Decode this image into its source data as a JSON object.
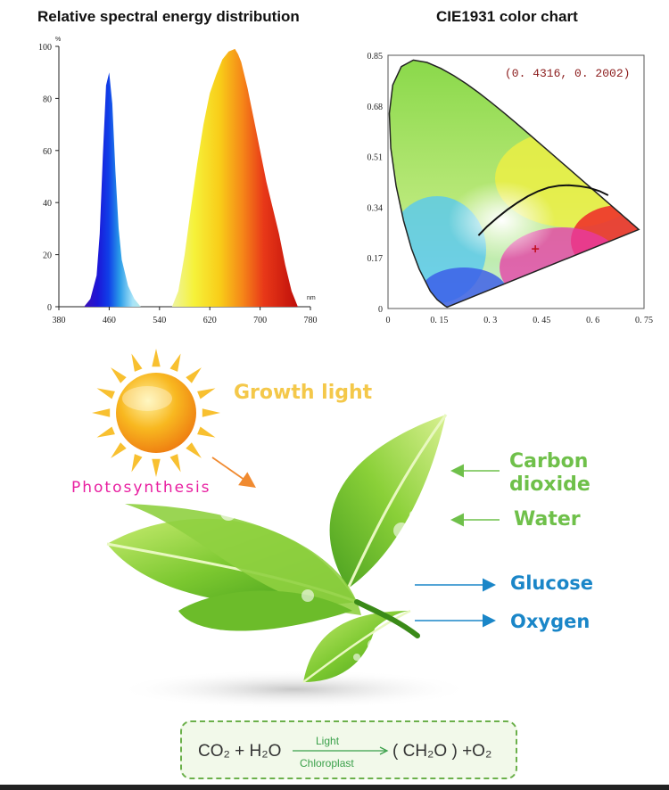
{
  "chart_data": [
    {
      "type": "area",
      "title": "Relative spectral energy distribution",
      "ylabel": "%",
      "xlabel": "nm",
      "xlim": [
        380,
        780
      ],
      "ylim": [
        0,
        100
      ],
      "xticks": [
        "380",
        "460",
        "540",
        "620",
        "700",
        "780"
      ],
      "yticks": [
        "0",
        "20",
        "40",
        "60",
        "80",
        "100"
      ],
      "x": [
        420,
        430,
        440,
        445,
        450,
        455,
        460,
        465,
        470,
        475,
        480,
        490,
        500,
        510,
        560,
        570,
        580,
        590,
        600,
        610,
        620,
        630,
        640,
        650,
        660,
        665,
        670,
        680,
        690,
        700,
        710,
        720,
        730,
        740,
        750,
        760
      ],
      "y": [
        0,
        3,
        12,
        28,
        58,
        85,
        90,
        78,
        52,
        30,
        18,
        8,
        3,
        0,
        0,
        6,
        20,
        38,
        55,
        70,
        82,
        89,
        95,
        98,
        99,
        97,
        94,
        84,
        72,
        60,
        48,
        38,
        28,
        16,
        6,
        0
      ],
      "grid": false,
      "legend": "none"
    },
    {
      "type": "scatter",
      "title": "CIE1931 color chart",
      "xlim": [
        0,
        0.75
      ],
      "ylim": [
        0,
        0.85
      ],
      "xticks": [
        "0",
        "0. 15",
        "0. 3",
        "0. 45",
        "0. 6",
        "0. 75"
      ],
      "yticks": [
        "0",
        "0.17",
        "0.34",
        "0.51",
        "0.68",
        "0.85"
      ],
      "annotation": "(0. 4316,  0. 2002)",
      "point": {
        "x": 0.4316,
        "y": 0.2002
      },
      "planckian_locus": {
        "x": [
          0.265,
          0.29,
          0.32,
          0.35,
          0.38,
          0.41,
          0.44,
          0.47,
          0.5,
          0.53,
          0.56,
          0.59,
          0.62,
          0.645
        ],
        "y": [
          0.245,
          0.275,
          0.305,
          0.332,
          0.356,
          0.377,
          0.394,
          0.406,
          0.412,
          0.414,
          0.411,
          0.405,
          0.394,
          0.38
        ]
      },
      "grid": false
    }
  ],
  "diagram": {
    "growth_light": "Growth light",
    "photosynthesis": "Photosynthesis",
    "carbon_dioxide_line1": "Carbon",
    "carbon_dioxide_line2": "dioxide",
    "water": "Water",
    "glucose": "Glucose",
    "oxygen": "Oxygen"
  },
  "formula": {
    "left": "CO₂ + H₂O",
    "above_arrow": "Light",
    "below_arrow": "Chloroplast",
    "right": "( CH₂O ) +O₂"
  },
  "colors": {
    "text_green": "#6fc04a",
    "text_blue": "#1a86c8",
    "growth_yellow": "#f4c84a",
    "photosynthesis_magenta": "#e81ea0",
    "annotation_red": "#8a1a1a"
  }
}
